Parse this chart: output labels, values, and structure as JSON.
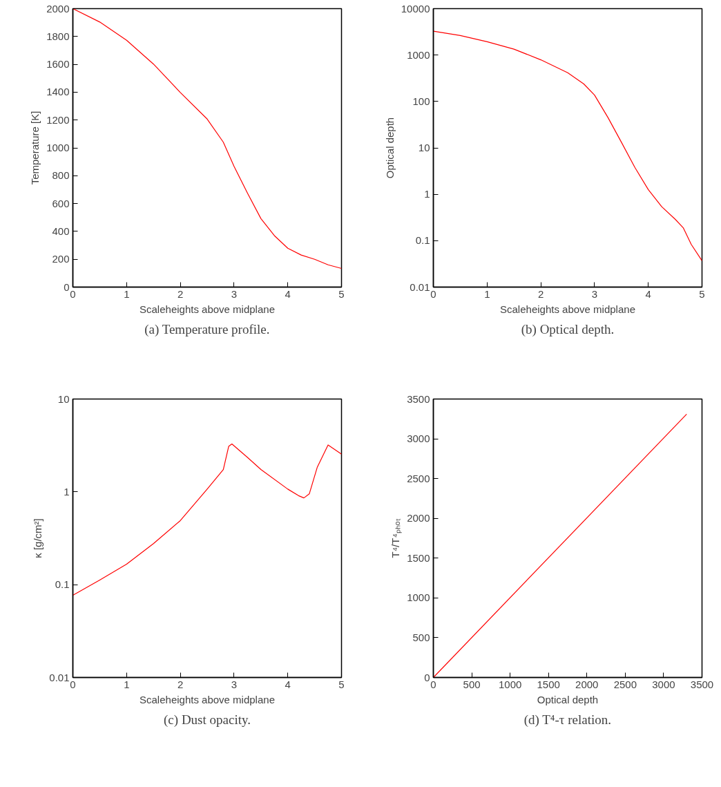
{
  "chart_data": [
    {
      "type": "line",
      "xlabel": "Scaleheights above midplane",
      "ylabel": "Temperature [K]",
      "annotations": [
        "(a) Temperature profile."
      ],
      "xlim": [
        0,
        5
      ],
      "ylim": [
        0,
        2000
      ],
      "xticks": [
        0,
        1,
        2,
        3,
        4,
        5
      ],
      "yticks": [
        0,
        200,
        400,
        600,
        800,
        1000,
        1200,
        1400,
        1600,
        1800,
        2000
      ],
      "series": [
        {
          "color": "#ff0000",
          "x": [
            0,
            0.5,
            1,
            1.5,
            2,
            2.5,
            2.8,
            3,
            3.25,
            3.5,
            3.75,
            4,
            4.25,
            4.5,
            4.75,
            5
          ],
          "values": [
            2000,
            1904,
            1773,
            1602,
            1398,
            1207,
            1041,
            867,
            675,
            492,
            370,
            279,
            230,
            200,
            160,
            134
          ]
        }
      ]
    },
    {
      "type": "line",
      "xlabel": "Scaleheights above midplane",
      "ylabel": "Optical depth",
      "annotations": [
        "(b) Optical depth."
      ],
      "log": true,
      "xlim": [
        0,
        5
      ],
      "ylim": [
        0.01,
        10000
      ],
      "xticks": [
        0,
        1,
        2,
        3,
        4,
        5
      ],
      "yticks": [
        0.01,
        0.1,
        1,
        10,
        100,
        1000,
        10000
      ],
      "series": [
        {
          "color": "#ff0000",
          "x": [
            0,
            0.5,
            1,
            1.5,
            2,
            2.5,
            2.8,
            3,
            3.25,
            3.5,
            3.75,
            4,
            4.25,
            4.5,
            4.65,
            4.8,
            5
          ],
          "values": [
            3260,
            2640,
            1940,
            1340,
            789,
            415,
            238,
            137,
            45,
            13.2,
            3.8,
            1.26,
            0.54,
            0.29,
            0.19,
            0.083,
            0.037
          ]
        }
      ]
    },
    {
      "type": "line",
      "xlabel": "Scaleheights above midplane",
      "ylabel": "κ [g/cm²]",
      "annotations": [
        "(c) Dust opacity."
      ],
      "log": true,
      "xlim": [
        0,
        5
      ],
      "ylim": [
        0.01,
        10
      ],
      "xticks": [
        0,
        1,
        2,
        3,
        4,
        5
      ],
      "yticks": [
        0.01,
        0.1,
        1,
        10
      ],
      "series": [
        {
          "color": "#ff0000",
          "x": [
            0,
            0.5,
            1,
            1.5,
            2,
            2.5,
            2.8,
            2.9,
            2.96,
            3.25,
            3.5,
            4,
            4.2,
            4.3,
            4.4,
            4.55,
            4.75,
            5
          ],
          "values": [
            0.077,
            0.112,
            0.166,
            0.277,
            0.49,
            1.07,
            1.74,
            3.09,
            3.28,
            2.35,
            1.74,
            1.07,
            0.91,
            0.86,
            0.95,
            1.85,
            3.2,
            2.55
          ]
        }
      ]
    },
    {
      "type": "line",
      "xlabel": "Optical depth",
      "ylabel": "T⁴/T⁴ₚₕₒₜ",
      "annotations": [
        "(d) T⁴-τ relation."
      ],
      "xlim": [
        0,
        3500
      ],
      "ylim": [
        0,
        3500
      ],
      "xticks": [
        0,
        500,
        1000,
        1500,
        2000,
        2500,
        3000,
        3500
      ],
      "yticks": [
        0,
        500,
        1000,
        1500,
        2000,
        2500,
        3000,
        3500
      ],
      "series": [
        {
          "color": "#ff0000",
          "x": [
            0,
            3300
          ],
          "values": [
            0,
            3310
          ]
        }
      ]
    }
  ]
}
